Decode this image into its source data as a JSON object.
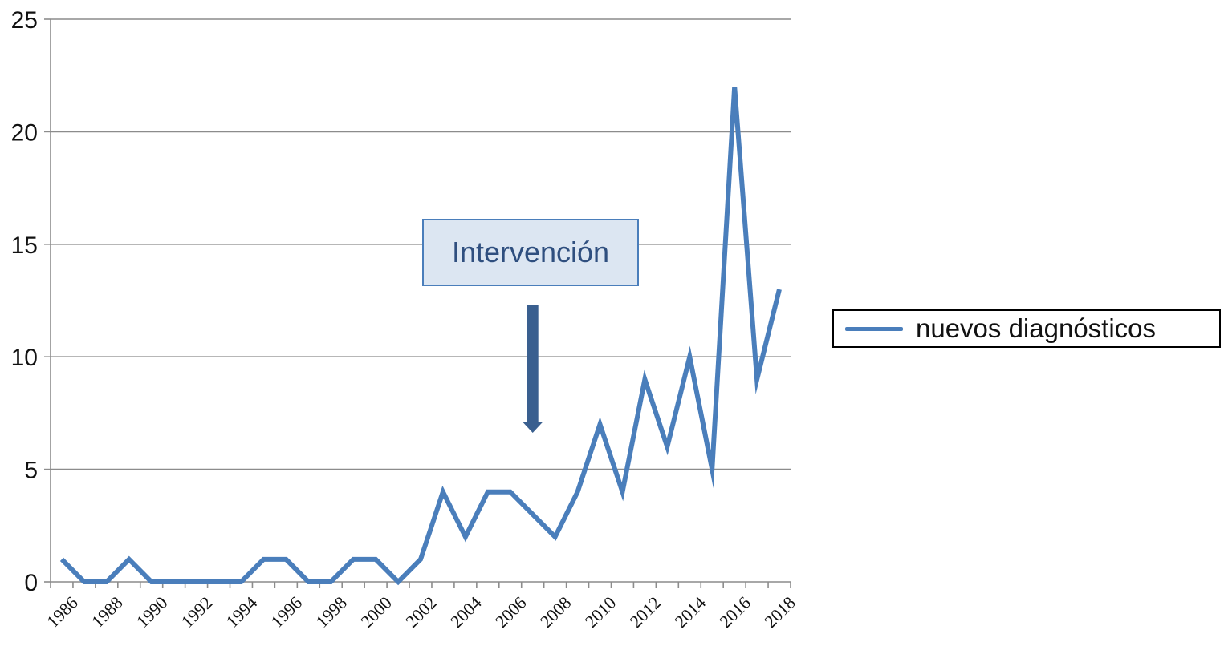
{
  "chart_data": {
    "type": "line",
    "title": "",
    "xlabel": "",
    "ylabel": "",
    "ylim": [
      0,
      25
    ],
    "yticks": [
      0,
      5,
      10,
      15,
      20,
      25
    ],
    "x": [
      1986,
      1987,
      1988,
      1989,
      1990,
      1991,
      1992,
      1993,
      1994,
      1995,
      1996,
      1997,
      1998,
      1999,
      2000,
      2001,
      2002,
      2003,
      2004,
      2005,
      2006,
      2007,
      2008,
      2009,
      2010,
      2011,
      2012,
      2013,
      2014,
      2015,
      2016,
      2017,
      2018
    ],
    "xtick_labels": [
      "1986",
      "1988",
      "1990",
      "1992",
      "1994",
      "1996",
      "1998",
      "2000",
      "2002",
      "2004",
      "2006",
      "2008",
      "2010",
      "2012",
      "2014",
      "2016",
      "2018"
    ],
    "series": [
      {
        "name": "nuevos diagnósticos",
        "color": "#4a7ebb",
        "values": [
          1,
          0,
          0,
          1,
          0,
          0,
          0,
          0,
          0,
          1,
          1,
          0,
          0,
          1,
          1,
          0,
          1,
          4,
          2,
          4,
          4,
          3,
          2,
          4,
          7,
          4,
          9,
          6,
          10,
          5,
          22,
          9,
          13
        ]
      }
    ],
    "grid": true,
    "legend_position": "right",
    "annotation": {
      "text": "Intervención",
      "points_to_x": 2007,
      "box_color": "#dce6f2",
      "border_color": "#4a7ebb",
      "arrow_color": "#3a5f8f"
    }
  }
}
